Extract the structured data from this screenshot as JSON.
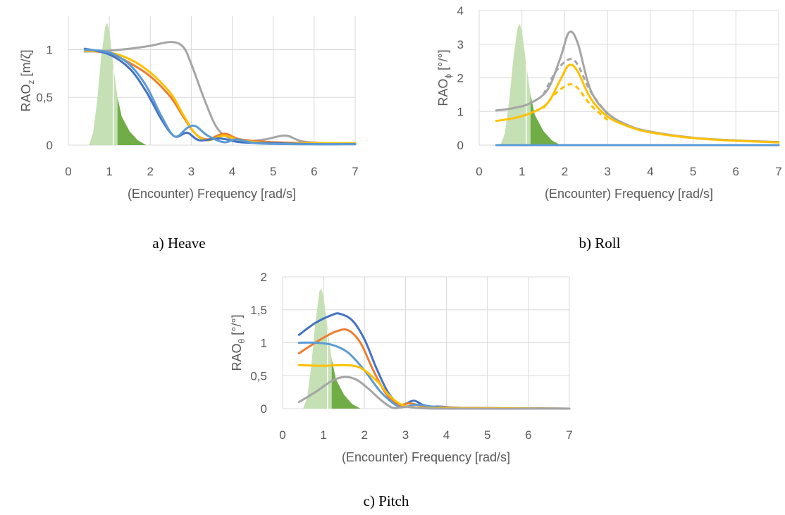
{
  "chart_data": [
    {
      "type": "line",
      "caption": "a) Heave",
      "xlabel": "(Encounter) Frequency [rad/s]",
      "ylabel": "RAOz [m/ζ]",
      "ylabel_main": "RAO",
      "ylabel_sub": "z",
      "ylabel_unit": " [m/ζ]",
      "xlim": [
        0,
        7
      ],
      "ylim": [
        0,
        1.35
      ],
      "xticks": [
        "0",
        "1",
        "2",
        "3",
        "4",
        "5",
        "6",
        "7"
      ],
      "yticks": [
        {
          "value": 0,
          "label": "0"
        },
        {
          "value": 0.5,
          "label": "0,5"
        },
        {
          "value": 1,
          "label": "1"
        }
      ],
      "grid": true,
      "spectrum": {
        "light": [
          [
            0.5,
            0
          ],
          [
            0.6,
            0.12
          ],
          [
            0.7,
            0.45
          ],
          [
            0.8,
            0.92
          ],
          [
            0.9,
            1.24
          ],
          [
            0.95,
            1.28
          ],
          [
            1.0,
            1.2
          ],
          [
            1.1,
            0.82
          ],
          [
            1.2,
            0.5
          ],
          [
            1.3,
            0.3
          ],
          [
            1.5,
            0.14
          ],
          [
            1.7,
            0.05
          ],
          [
            1.9,
            0
          ]
        ],
        "dark": [
          [
            1.2,
            0
          ],
          [
            1.2,
            0.5
          ],
          [
            1.3,
            0.3
          ],
          [
            1.5,
            0.14
          ],
          [
            1.7,
            0.05
          ],
          [
            1.9,
            0
          ]
        ]
      },
      "series": [
        {
          "color": "#a5a5a5",
          "points": [
            [
              0.4,
              0.98
            ],
            [
              1.0,
              0.99
            ],
            [
              1.5,
              1.01
            ],
            [
              2.0,
              1.04
            ],
            [
              2.5,
              1.08
            ],
            [
              2.8,
              1.03
            ],
            [
              3.0,
              0.85
            ],
            [
              3.3,
              0.5
            ],
            [
              3.6,
              0.2
            ],
            [
              3.9,
              0.08
            ],
            [
              4.3,
              0.04
            ],
            [
              4.8,
              0.06
            ],
            [
              5.3,
              0.1
            ],
            [
              5.7,
              0.04
            ],
            [
              6.3,
              0.02
            ],
            [
              7,
              0.02
            ]
          ]
        },
        {
          "color": "#ed7d31",
          "points": [
            [
              0.4,
              0.99
            ],
            [
              1.0,
              0.96
            ],
            [
              1.5,
              0.86
            ],
            [
              2.0,
              0.72
            ],
            [
              2.5,
              0.5
            ],
            [
              2.8,
              0.3
            ],
            [
              3.1,
              0.12
            ],
            [
              3.4,
              0.06
            ],
            [
              3.8,
              0.12
            ],
            [
              4.2,
              0.06
            ],
            [
              5,
              0.03
            ],
            [
              6,
              0.02
            ],
            [
              7,
              0.01
            ]
          ]
        },
        {
          "color": "#ffc000",
          "points": [
            [
              0.4,
              0.99
            ],
            [
              1.0,
              0.97
            ],
            [
              1.5,
              0.9
            ],
            [
              2.0,
              0.76
            ],
            [
              2.5,
              0.54
            ],
            [
              2.8,
              0.32
            ],
            [
              3.1,
              0.12
            ],
            [
              3.4,
              0.05
            ],
            [
              3.8,
              0.1
            ],
            [
              4.2,
              0.05
            ],
            [
              5,
              0.02
            ],
            [
              6,
              0.02
            ],
            [
              7,
              0.02
            ]
          ]
        },
        {
          "color": "#4472c4",
          "points": [
            [
              0.4,
              1.01
            ],
            [
              1.0,
              0.95
            ],
            [
              1.5,
              0.8
            ],
            [
              1.9,
              0.56
            ],
            [
              2.3,
              0.25
            ],
            [
              2.6,
              0.09
            ],
            [
              2.9,
              0.13
            ],
            [
              3.2,
              0.05
            ],
            [
              3.7,
              0.07
            ],
            [
              4.2,
              0.03
            ],
            [
              5,
              0.02
            ],
            [
              6,
              0.01
            ],
            [
              7,
              0.01
            ]
          ]
        },
        {
          "color": "#5b9bd5",
          "points": [
            [
              0.4,
              1.0
            ],
            [
              1.0,
              0.97
            ],
            [
              1.5,
              0.84
            ],
            [
              1.9,
              0.62
            ],
            [
              2.3,
              0.28
            ],
            [
              2.6,
              0.09
            ],
            [
              2.9,
              0.18
            ],
            [
              3.1,
              0.2
            ],
            [
              3.4,
              0.1
            ],
            [
              3.8,
              0.03
            ],
            [
              4.1,
              0.06
            ],
            [
              4.6,
              0.02
            ],
            [
              5.5,
              0.01
            ],
            [
              7,
              0.01
            ]
          ]
        }
      ]
    },
    {
      "type": "line",
      "caption": "b) Roll",
      "xlabel": "(Encounter) Frequency [rad/s]",
      "ylabel": "RAOϕ [°/°]",
      "ylabel_main": "RAO",
      "ylabel_sub": "ϕ",
      "ylabel_unit": " [°/°]",
      "xlim": [
        0,
        7
      ],
      "ylim": [
        0,
        4
      ],
      "xticks": [
        "0",
        "1",
        "2",
        "3",
        "4",
        "5",
        "6",
        "7"
      ],
      "yticks": [
        {
          "value": 0,
          "label": "0"
        },
        {
          "value": 1,
          "label": "1"
        },
        {
          "value": 2,
          "label": "2"
        },
        {
          "value": 3,
          "label": "3"
        },
        {
          "value": 4,
          "label": "4"
        }
      ],
      "grid": true,
      "spectrum": {
        "light": [
          [
            0.5,
            0
          ],
          [
            0.6,
            0.35
          ],
          [
            0.7,
            1.3
          ],
          [
            0.8,
            2.6
          ],
          [
            0.9,
            3.5
          ],
          [
            0.95,
            3.6
          ],
          [
            1.0,
            3.4
          ],
          [
            1.1,
            2.4
          ],
          [
            1.2,
            1.5
          ],
          [
            1.3,
            0.9
          ],
          [
            1.5,
            0.42
          ],
          [
            1.7,
            0.14
          ],
          [
            1.9,
            0
          ]
        ],
        "dark": [
          [
            1.2,
            0
          ],
          [
            1.2,
            1.5
          ],
          [
            1.3,
            0.9
          ],
          [
            1.5,
            0.42
          ],
          [
            1.7,
            0.14
          ],
          [
            1.9,
            0
          ]
        ]
      },
      "series": [
        {
          "color": "#a5a5a5",
          "dashed": false,
          "points": [
            [
              0.4,
              1.03
            ],
            [
              0.8,
              1.1
            ],
            [
              1.2,
              1.25
            ],
            [
              1.6,
              1.65
            ],
            [
              1.9,
              2.6
            ],
            [
              2.1,
              3.35
            ],
            [
              2.3,
              3.05
            ],
            [
              2.6,
              1.65
            ],
            [
              3.0,
              0.95
            ],
            [
              3.5,
              0.58
            ],
            [
              4,
              0.4
            ],
            [
              5,
              0.22
            ],
            [
              6,
              0.14
            ],
            [
              7,
              0.09
            ]
          ]
        },
        {
          "color": "#a5a5a5",
          "dashed": true,
          "points": [
            [
              1.5,
              1.5
            ],
            [
              1.8,
              2.2
            ],
            [
              2.1,
              2.55
            ],
            [
              2.3,
              2.4
            ],
            [
              2.6,
              1.6
            ],
            [
              3.0,
              0.92
            ]
          ]
        },
        {
          "color": "#ffc000",
          "dashed": true,
          "points": [
            [
              1.5,
              1.1
            ],
            [
              1.8,
              1.55
            ],
            [
              2.1,
              1.8
            ],
            [
              2.3,
              1.7
            ],
            [
              2.6,
              1.2
            ],
            [
              3.0,
              0.75
            ]
          ]
        },
        {
          "color": "#ffc000",
          "dashed": false,
          "points": [
            [
              0.4,
              0.72
            ],
            [
              0.8,
              0.8
            ],
            [
              1.2,
              0.95
            ],
            [
              1.6,
              1.25
            ],
            [
              1.9,
              1.95
            ],
            [
              2.1,
              2.38
            ],
            [
              2.3,
              2.2
            ],
            [
              2.6,
              1.4
            ],
            [
              3.0,
              0.85
            ],
            [
              3.5,
              0.55
            ],
            [
              4,
              0.38
            ],
            [
              5,
              0.21
            ],
            [
              6,
              0.13
            ],
            [
              7,
              0.08
            ]
          ]
        },
        {
          "color": "#5b9bd5",
          "dashed": false,
          "points": [
            [
              0.4,
              0
            ],
            [
              7,
              0
            ]
          ]
        }
      ]
    },
    {
      "type": "line",
      "caption": "c) Pitch",
      "xlabel": "(Encounter) Frequency [rad/s]",
      "ylabel": "RAOθ [°/°]",
      "ylabel_main": "RAO",
      "ylabel_sub": "θ",
      "ylabel_unit": " [°/°]",
      "xlim": [
        0,
        7
      ],
      "ylim": [
        0,
        2
      ],
      "xticks": [
        "0",
        "1",
        "2",
        "3",
        "4",
        "5",
        "6",
        "7"
      ],
      "yticks": [
        {
          "value": 0,
          "label": "0"
        },
        {
          "value": 0.5,
          "label": "0,5"
        },
        {
          "value": 1,
          "label": "1"
        },
        {
          "value": 1.5,
          "label": "1,5"
        },
        {
          "value": 2,
          "label": "2"
        }
      ],
      "grid": true,
      "spectrum": {
        "light": [
          [
            0.5,
            0
          ],
          [
            0.6,
            0.17
          ],
          [
            0.7,
            0.65
          ],
          [
            0.8,
            1.3
          ],
          [
            0.9,
            1.78
          ],
          [
            0.95,
            1.82
          ],
          [
            1.0,
            1.7
          ],
          [
            1.1,
            1.2
          ],
          [
            1.2,
            0.75
          ],
          [
            1.3,
            0.45
          ],
          [
            1.5,
            0.21
          ],
          [
            1.7,
            0.07
          ],
          [
            1.9,
            0
          ]
        ],
        "dark": [
          [
            1.2,
            0
          ],
          [
            1.2,
            0.75
          ],
          [
            1.3,
            0.45
          ],
          [
            1.5,
            0.21
          ],
          [
            1.7,
            0.07
          ],
          [
            1.9,
            0
          ]
        ]
      },
      "series": [
        {
          "color": "#4472c4",
          "points": [
            [
              0.4,
              1.12
            ],
            [
              0.8,
              1.3
            ],
            [
              1.2,
              1.42
            ],
            [
              1.4,
              1.44
            ],
            [
              1.7,
              1.34
            ],
            [
              2.0,
              1.05
            ],
            [
              2.3,
              0.6
            ],
            [
              2.6,
              0.22
            ],
            [
              2.9,
              0.06
            ],
            [
              3.2,
              0.12
            ],
            [
              3.5,
              0.04
            ],
            [
              3.9,
              0.03
            ],
            [
              4.5,
              0.01
            ],
            [
              7,
              0
            ]
          ]
        },
        {
          "color": "#ed7d31",
          "points": [
            [
              0.4,
              0.84
            ],
            [
              0.9,
              1.04
            ],
            [
              1.3,
              1.17
            ],
            [
              1.6,
              1.19
            ],
            [
              1.9,
              1.0
            ],
            [
              2.2,
              0.6
            ],
            [
              2.5,
              0.25
            ],
            [
              2.8,
              0.06
            ],
            [
              3.1,
              0.08
            ],
            [
              3.5,
              0.03
            ],
            [
              4,
              0.02
            ],
            [
              4.5,
              0.01
            ],
            [
              7,
              0
            ]
          ]
        },
        {
          "color": "#5b9bd5",
          "points": [
            [
              0.4,
              1.0
            ],
            [
              0.8,
              1.0
            ],
            [
              1.2,
              0.97
            ],
            [
              1.6,
              0.85
            ],
            [
              2.0,
              0.58
            ],
            [
              2.4,
              0.25
            ],
            [
              2.8,
              0.04
            ],
            [
              3.0,
              0.03
            ],
            [
              3.3,
              0.06
            ],
            [
              3.8,
              0.02
            ],
            [
              4.5,
              0.01
            ],
            [
              7,
              0
            ]
          ]
        },
        {
          "color": "#ffc000",
          "points": [
            [
              0.4,
              0.66
            ],
            [
              1.0,
              0.65
            ],
            [
              1.5,
              0.66
            ],
            [
              1.9,
              0.62
            ],
            [
              2.3,
              0.42
            ],
            [
              2.6,
              0.2
            ],
            [
              2.9,
              0.06
            ],
            [
              3.2,
              0.02
            ],
            [
              3.6,
              0.01
            ],
            [
              4.2,
              0.01
            ],
            [
              7,
              0
            ]
          ]
        },
        {
          "color": "#a5a5a5",
          "points": [
            [
              0.4,
              0.1
            ],
            [
              0.8,
              0.25
            ],
            [
              1.2,
              0.42
            ],
            [
              1.5,
              0.48
            ],
            [
              1.8,
              0.44
            ],
            [
              2.1,
              0.3
            ],
            [
              2.4,
              0.13
            ],
            [
              2.7,
              0.01
            ],
            [
              3.0,
              0.03
            ],
            [
              3.3,
              0.01
            ],
            [
              4,
              0
            ],
            [
              7,
              0
            ]
          ]
        }
      ]
    }
  ]
}
